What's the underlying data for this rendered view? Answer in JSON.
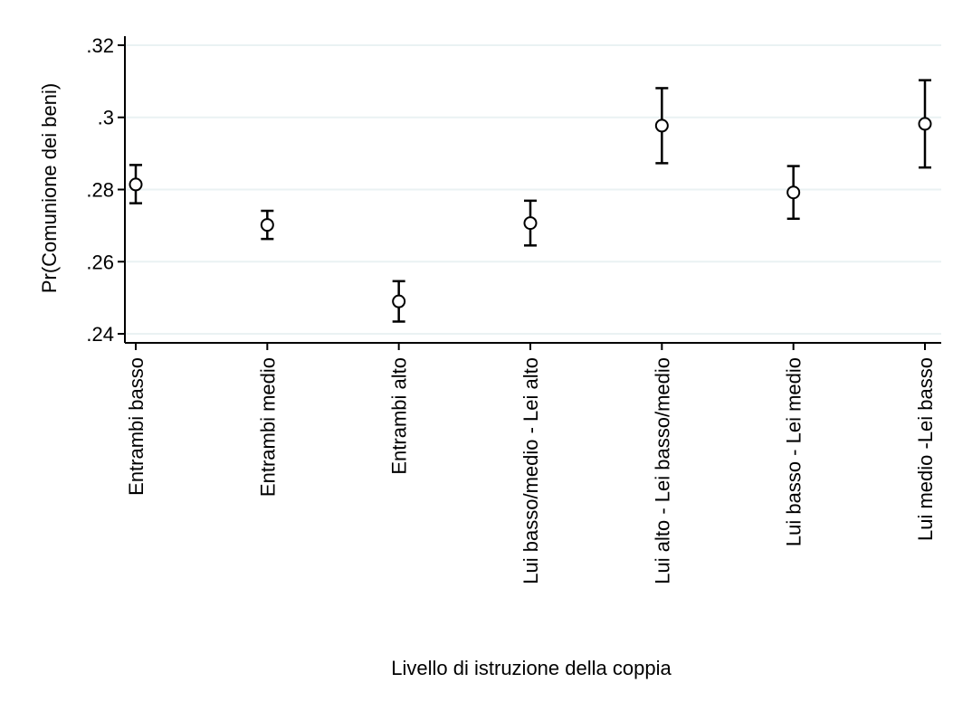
{
  "chart_data": {
    "type": "scatter",
    "xlabel": "Livello di istruzione della coppia",
    "ylabel": "Pr(Comunione dei beni)",
    "ylim": [
      0.2375,
      0.3225
    ],
    "yticks": [
      {
        "value": 0.24,
        "label": ".24"
      },
      {
        "value": 0.26,
        "label": ".26"
      },
      {
        "value": 0.28,
        "label": ".28"
      },
      {
        "value": 0.3,
        "label": ".3"
      },
      {
        "value": 0.32,
        "label": ".32"
      }
    ],
    "grid": true,
    "categories": [
      "Entrambi basso",
      "Entrambi medio",
      "Entrambi alto",
      "Lui basso/medio - Lei alto",
      "Lui alto - Lei basso/medio",
      "Lui basso - Lei medio",
      "Lui medio -Lei basso"
    ],
    "points": [
      {
        "y": 0.2814,
        "lo": 0.2762,
        "hi": 0.2868
      },
      {
        "y": 0.2702,
        "lo": 0.2663,
        "hi": 0.2741
      },
      {
        "y": 0.249,
        "lo": 0.2434,
        "hi": 0.2546
      },
      {
        "y": 0.2707,
        "lo": 0.2645,
        "hi": 0.2769
      },
      {
        "y": 0.2977,
        "lo": 0.2873,
        "hi": 0.3081
      },
      {
        "y": 0.2792,
        "lo": 0.2719,
        "hi": 0.2865
      },
      {
        "y": 0.2982,
        "lo": 0.2861,
        "hi": 0.3103
      }
    ],
    "colors": {
      "marker_fill": "#ffffff",
      "marker_stroke": "#000000",
      "grid": "#eaf2f3"
    }
  }
}
